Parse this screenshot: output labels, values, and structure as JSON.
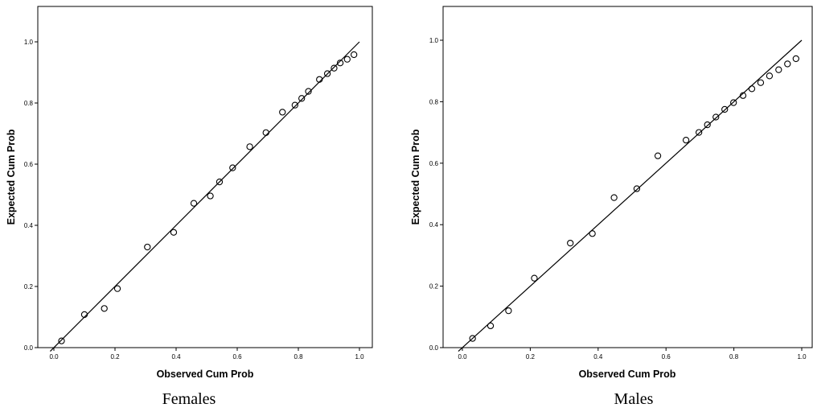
{
  "chart_data": [
    {
      "type": "scatter",
      "caption": "Females",
      "xlabel": "Observed Cum Prob",
      "ylabel": "Expected Cum Prob",
      "xlim": [
        0.0,
        1.0
      ],
      "ylim": [
        0.0,
        1.0
      ],
      "xticks": [
        "0.0",
        "0.2",
        "0.4",
        "0.6",
        "0.8",
        "1.0"
      ],
      "yticks": [
        "0.0",
        "0.2",
        "0.4",
        "0.6",
        "0.8",
        "1.0"
      ],
      "grid": false,
      "reference_line": [
        [
          0.0,
          0.0
        ],
        [
          1.0,
          1.0
        ]
      ],
      "points": [
        [
          0.025,
          0.022
        ],
        [
          0.1,
          0.108
        ],
        [
          0.165,
          0.128
        ],
        [
          0.208,
          0.193
        ],
        [
          0.306,
          0.329
        ],
        [
          0.392,
          0.377
        ],
        [
          0.458,
          0.472
        ],
        [
          0.512,
          0.496
        ],
        [
          0.542,
          0.542
        ],
        [
          0.585,
          0.588
        ],
        [
          0.641,
          0.657
        ],
        [
          0.694,
          0.703
        ],
        [
          0.748,
          0.77
        ],
        [
          0.789,
          0.793
        ],
        [
          0.811,
          0.815
        ],
        [
          0.833,
          0.838
        ],
        [
          0.869,
          0.877
        ],
        [
          0.895,
          0.896
        ],
        [
          0.917,
          0.914
        ],
        [
          0.937,
          0.931
        ],
        [
          0.96,
          0.943
        ],
        [
          0.982,
          0.958
        ]
      ]
    },
    {
      "type": "scatter",
      "caption": "Males",
      "xlabel": "Observed Cum Prob",
      "ylabel": "Expected Cum Prob",
      "xlim": [
        0.0,
        1.0
      ],
      "ylim": [
        0.0,
        1.0
      ],
      "xticks": [
        "0.0",
        "0.2",
        "0.4",
        "0.6",
        "0.8",
        "1.0"
      ],
      "yticks": [
        "0.0",
        "0.2",
        "0.4",
        "0.6",
        "0.8",
        "1.0"
      ],
      "grid": false,
      "reference_line": [
        [
          0.0,
          0.0
        ],
        [
          1.0,
          1.0
        ]
      ],
      "points": [
        [
          0.03,
          0.03
        ],
        [
          0.083,
          0.071
        ],
        [
          0.136,
          0.12
        ],
        [
          0.212,
          0.226
        ],
        [
          0.318,
          0.34
        ],
        [
          0.383,
          0.371
        ],
        [
          0.447,
          0.488
        ],
        [
          0.514,
          0.517
        ],
        [
          0.576,
          0.624
        ],
        [
          0.659,
          0.675
        ],
        [
          0.697,
          0.7
        ],
        [
          0.722,
          0.725
        ],
        [
          0.747,
          0.75
        ],
        [
          0.773,
          0.775
        ],
        [
          0.799,
          0.797
        ],
        [
          0.827,
          0.82
        ],
        [
          0.853,
          0.842
        ],
        [
          0.879,
          0.862
        ],
        [
          0.905,
          0.884
        ],
        [
          0.932,
          0.904
        ],
        [
          0.958,
          0.923
        ],
        [
          0.983,
          0.94
        ]
      ]
    }
  ]
}
